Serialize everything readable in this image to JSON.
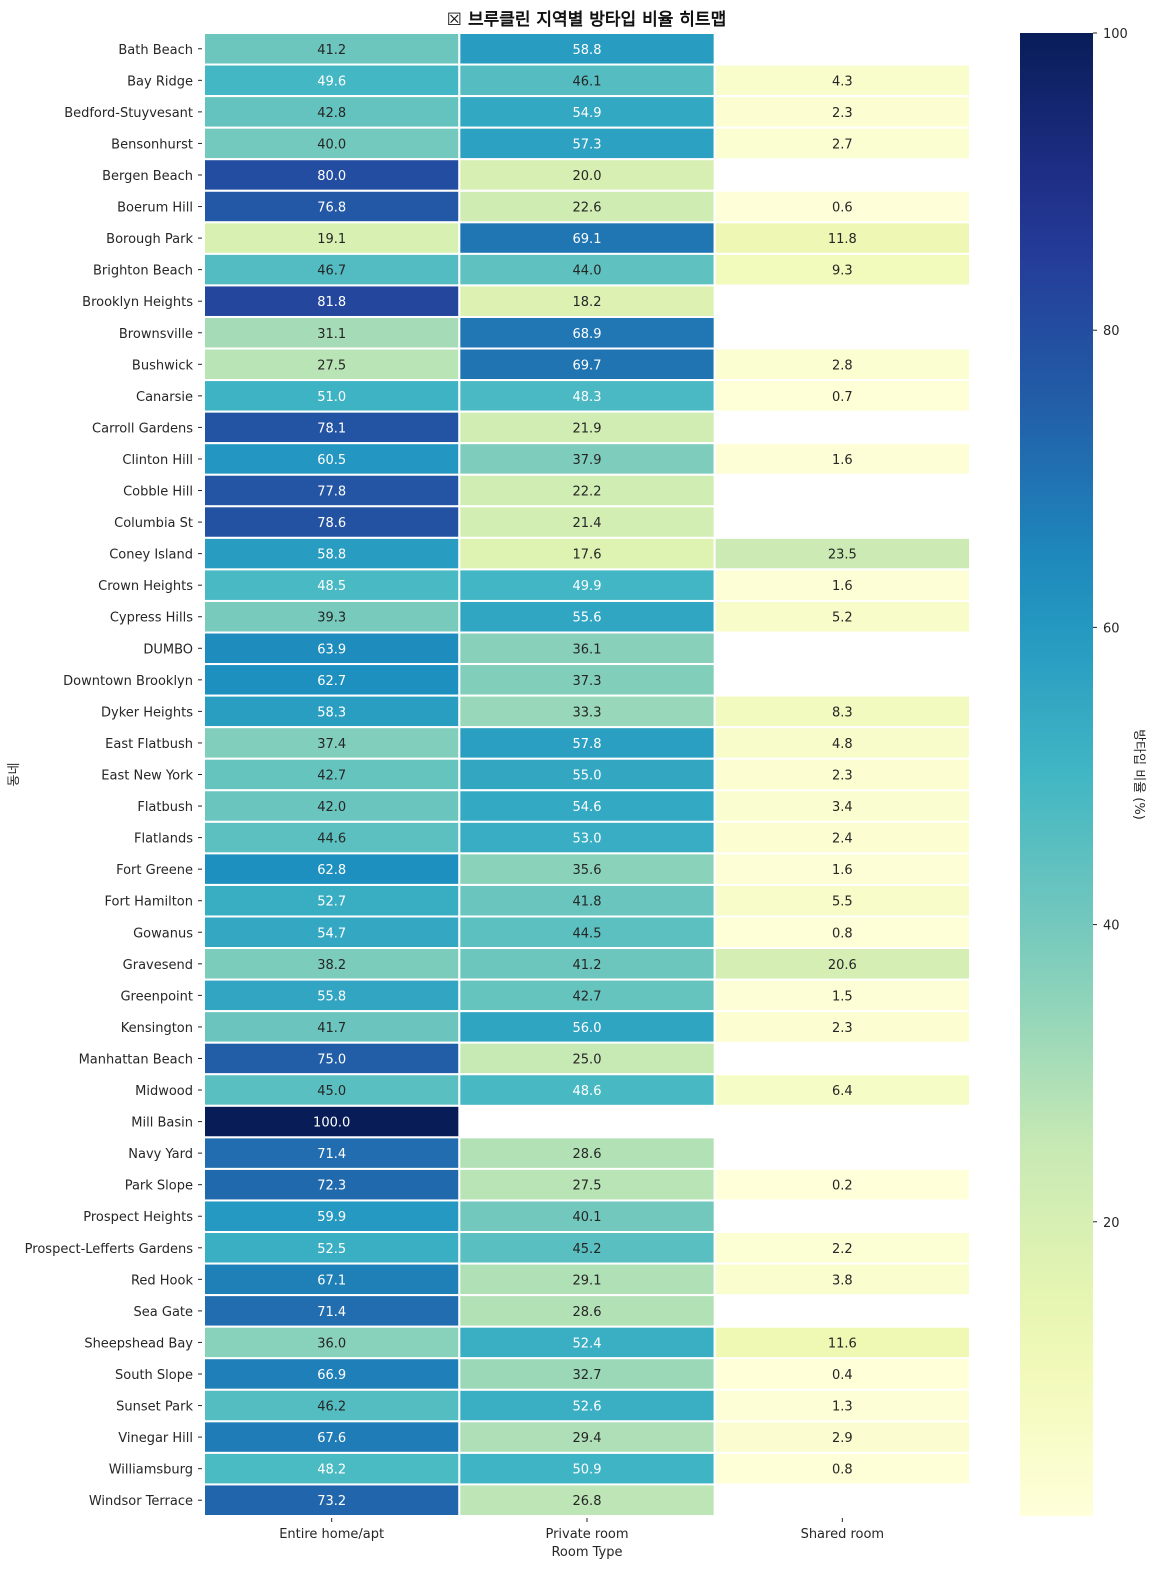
{
  "chart_data": {
    "type": "heatmap",
    "title": "☒ 브루클린 지역별 방타입 비율 히트맵",
    "xlabel": "Room Type",
    "ylabel": "동네",
    "colorbar_label": "방타입 비율 (%)",
    "colormap": "YlGnBu",
    "vmin": 0.2,
    "vmax": 100,
    "colorbar_ticks": [
      20,
      40,
      60,
      80,
      100
    ],
    "columns": [
      "Entire home/apt",
      "Private room",
      "Shared room"
    ],
    "rows": [
      {
        "name": "Bath Beach",
        "values": [
          41.2,
          58.8,
          null
        ]
      },
      {
        "name": "Bay Ridge",
        "values": [
          49.6,
          46.1,
          4.3
        ]
      },
      {
        "name": "Bedford-Stuyvesant",
        "values": [
          42.8,
          54.9,
          2.3
        ]
      },
      {
        "name": "Bensonhurst",
        "values": [
          40.0,
          57.3,
          2.7
        ]
      },
      {
        "name": "Bergen Beach",
        "values": [
          80.0,
          20.0,
          null
        ]
      },
      {
        "name": "Boerum Hill",
        "values": [
          76.8,
          22.6,
          0.6
        ]
      },
      {
        "name": "Borough Park",
        "values": [
          19.1,
          69.1,
          11.8
        ]
      },
      {
        "name": "Brighton Beach",
        "values": [
          46.7,
          44.0,
          9.3
        ]
      },
      {
        "name": "Brooklyn Heights",
        "values": [
          81.8,
          18.2,
          null
        ]
      },
      {
        "name": "Brownsville",
        "values": [
          31.1,
          68.9,
          null
        ]
      },
      {
        "name": "Bushwick",
        "values": [
          27.5,
          69.7,
          2.8
        ]
      },
      {
        "name": "Canarsie",
        "values": [
          51.0,
          48.3,
          0.7
        ]
      },
      {
        "name": "Carroll Gardens",
        "values": [
          78.1,
          21.9,
          null
        ]
      },
      {
        "name": "Clinton Hill",
        "values": [
          60.5,
          37.9,
          1.6
        ]
      },
      {
        "name": "Cobble Hill",
        "values": [
          77.8,
          22.2,
          null
        ]
      },
      {
        "name": "Columbia St",
        "values": [
          78.6,
          21.4,
          null
        ]
      },
      {
        "name": "Coney Island",
        "values": [
          58.8,
          17.6,
          23.5
        ]
      },
      {
        "name": "Crown Heights",
        "values": [
          48.5,
          49.9,
          1.6
        ]
      },
      {
        "name": "Cypress Hills",
        "values": [
          39.3,
          55.6,
          5.2
        ]
      },
      {
        "name": "DUMBO",
        "values": [
          63.9,
          36.1,
          null
        ]
      },
      {
        "name": "Downtown Brooklyn",
        "values": [
          62.7,
          37.3,
          null
        ]
      },
      {
        "name": "Dyker Heights",
        "values": [
          58.3,
          33.3,
          8.3
        ]
      },
      {
        "name": "East Flatbush",
        "values": [
          37.4,
          57.8,
          4.8
        ]
      },
      {
        "name": "East New York",
        "values": [
          42.7,
          55.0,
          2.3
        ]
      },
      {
        "name": "Flatbush",
        "values": [
          42.0,
          54.6,
          3.4
        ]
      },
      {
        "name": "Flatlands",
        "values": [
          44.6,
          53.0,
          2.4
        ]
      },
      {
        "name": "Fort Greene",
        "values": [
          62.8,
          35.6,
          1.6
        ]
      },
      {
        "name": "Fort Hamilton",
        "values": [
          52.7,
          41.8,
          5.5
        ]
      },
      {
        "name": "Gowanus",
        "values": [
          54.7,
          44.5,
          0.8
        ]
      },
      {
        "name": "Gravesend",
        "values": [
          38.2,
          41.2,
          20.6
        ]
      },
      {
        "name": "Greenpoint",
        "values": [
          55.8,
          42.7,
          1.5
        ]
      },
      {
        "name": "Kensington",
        "values": [
          41.7,
          56.0,
          2.3
        ]
      },
      {
        "name": "Manhattan Beach",
        "values": [
          75.0,
          25.0,
          null
        ]
      },
      {
        "name": "Midwood",
        "values": [
          45.0,
          48.6,
          6.4
        ]
      },
      {
        "name": "Mill Basin",
        "values": [
          100.0,
          null,
          null
        ]
      },
      {
        "name": "Navy Yard",
        "values": [
          71.4,
          28.6,
          null
        ]
      },
      {
        "name": "Park Slope",
        "values": [
          72.3,
          27.5,
          0.2
        ]
      },
      {
        "name": "Prospect Heights",
        "values": [
          59.9,
          40.1,
          null
        ]
      },
      {
        "name": "Prospect-Lefferts Gardens",
        "values": [
          52.5,
          45.2,
          2.2
        ]
      },
      {
        "name": "Red Hook",
        "values": [
          67.1,
          29.1,
          3.8
        ]
      },
      {
        "name": "Sea Gate",
        "values": [
          71.4,
          28.6,
          null
        ]
      },
      {
        "name": "Sheepshead Bay",
        "values": [
          36.0,
          52.4,
          11.6
        ]
      },
      {
        "name": "South Slope",
        "values": [
          66.9,
          32.7,
          0.4
        ]
      },
      {
        "name": "Sunset Park",
        "values": [
          46.2,
          52.6,
          1.3
        ]
      },
      {
        "name": "Vinegar Hill",
        "values": [
          67.6,
          29.4,
          2.9
        ]
      },
      {
        "name": "Williamsburg",
        "values": [
          48.2,
          50.9,
          0.8
        ]
      },
      {
        "name": "Windsor Terrace",
        "values": [
          73.2,
          26.8,
          null
        ]
      }
    ]
  }
}
